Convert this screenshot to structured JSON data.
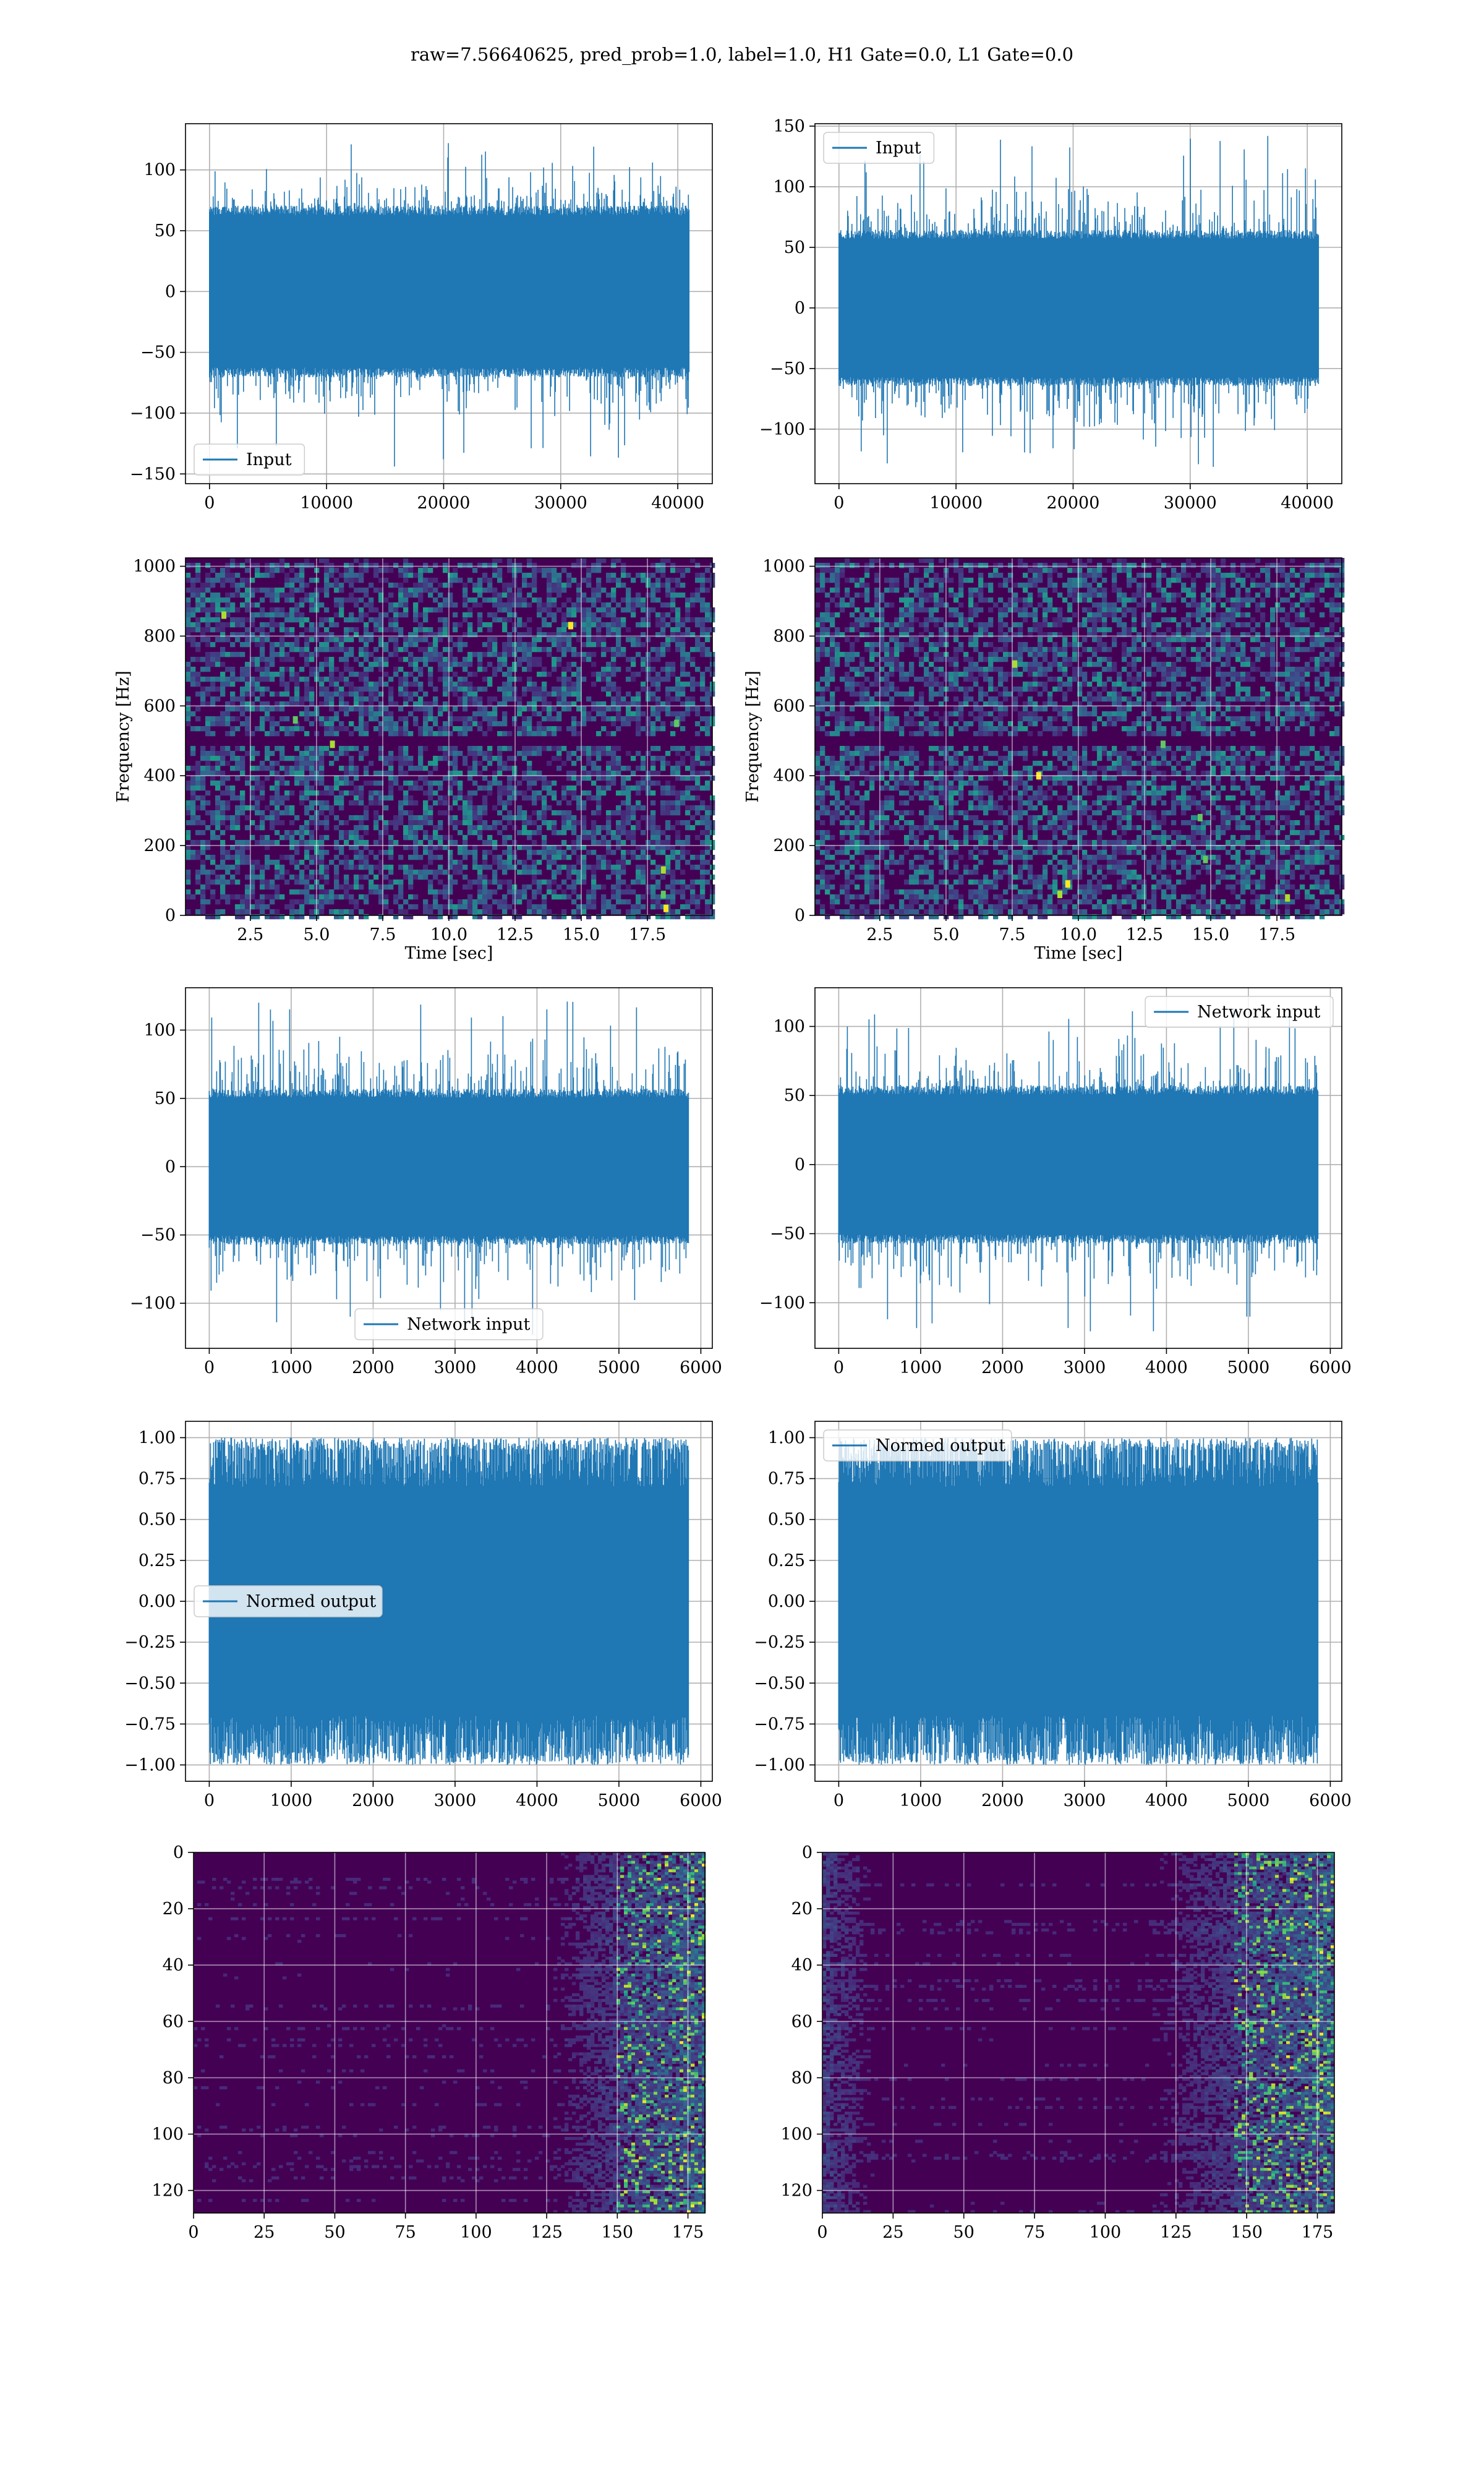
{
  "figure": {
    "title": "raw=7.56640625, pred_prob=1.0, label=1.0, H1 Gate=0.0, L1 Gate=0.0"
  },
  "colors": {
    "series": "#1f77b4",
    "grid": "#b0b0b0",
    "viridis_dark": "#440154",
    "viridis_mid": "#21918c",
    "viridis_bright": "#fde725"
  },
  "chart_data": [
    {
      "id": "h1-input",
      "type": "line",
      "title": "",
      "xlabel": "",
      "ylabel": "",
      "xlim": [
        -2050,
        42950
      ],
      "ylim": [
        -158,
        138
      ],
      "xticks": [
        0,
        10000,
        20000,
        30000,
        40000
      ],
      "yticks": [
        -150,
        -100,
        -50,
        0,
        50,
        100
      ],
      "grid": true,
      "legend": "lower left",
      "series": [
        {
          "name": "Input",
          "x_range": [
            0,
            40959
          ],
          "envelope": {
            "typical": [
              -68,
              68
            ],
            "peaks": [
              -146,
              124
            ]
          }
        }
      ]
    },
    {
      "id": "l1-input",
      "type": "line",
      "title": "",
      "xlabel": "",
      "ylabel": "",
      "xlim": [
        -2050,
        42950
      ],
      "ylim": [
        -145,
        152
      ],
      "xticks": [
        0,
        10000,
        20000,
        30000,
        40000
      ],
      "yticks": [
        -100,
        -50,
        0,
        50,
        100,
        150
      ],
      "grid": true,
      "legend": "upper left",
      "series": [
        {
          "name": "Input",
          "x_range": [
            0,
            40959
          ],
          "envelope": {
            "typical": [
              -62,
              62
            ],
            "peaks": [
              -132,
              142
            ]
          }
        }
      ]
    },
    {
      "id": "h1-spectrogram",
      "type": "heatmap",
      "title": "",
      "xlabel": "Time [sec]",
      "ylabel": "Frequency [Hz]",
      "xlim": [
        0.05,
        19.95
      ],
      "ylim": [
        0,
        1024
      ],
      "xticks": [
        2.5,
        5.0,
        7.5,
        10.0,
        12.5,
        15.0,
        17.5
      ],
      "yticks": [
        0,
        200,
        400,
        600,
        800,
        1000
      ],
      "grid": true,
      "colormap": "viridis",
      "dark_band_hz": [
        485,
        520
      ],
      "bright_spots": [
        {
          "t": 18.1,
          "f": 60
        },
        {
          "t": 18.1,
          "f": 130
        },
        {
          "t": 18.2,
          "f": 20
        },
        {
          "t": 18.6,
          "f": 550
        },
        {
          "t": 5.6,
          "f": 490
        },
        {
          "t": 14.6,
          "f": 830
        },
        {
          "t": 4.2,
          "f": 560
        },
        {
          "t": 1.5,
          "f": 860
        }
      ]
    },
    {
      "id": "l1-spectrogram",
      "type": "heatmap",
      "title": "",
      "xlabel": "Time [sec]",
      "ylabel": "Frequency [Hz]",
      "xlim": [
        0.05,
        19.95
      ],
      "ylim": [
        0,
        1024
      ],
      "xticks": [
        2.5,
        5.0,
        7.5,
        10.0,
        12.5,
        15.0,
        17.5
      ],
      "yticks": [
        0,
        200,
        400,
        600,
        800,
        1000
      ],
      "grid": true,
      "colormap": "viridis",
      "dark_band_hz": [
        485,
        520
      ],
      "bright_spots": [
        {
          "t": 13.2,
          "f": 490
        },
        {
          "t": 7.6,
          "f": 720
        },
        {
          "t": 9.6,
          "f": 90
        },
        {
          "t": 14.8,
          "f": 160
        },
        {
          "t": 9.3,
          "f": 60
        },
        {
          "t": 8.5,
          "f": 400
        },
        {
          "t": 14.6,
          "f": 280
        },
        {
          "t": 17.9,
          "f": 50
        }
      ]
    },
    {
      "id": "h1-network-input",
      "type": "line",
      "title": "",
      "xlabel": "",
      "ylabel": "",
      "xlim": [
        -290,
        6140
      ],
      "ylim": [
        -133,
        131
      ],
      "xticks": [
        0,
        1000,
        2000,
        3000,
        4000,
        5000,
        6000
      ],
      "yticks": [
        -100,
        -50,
        0,
        50,
        100
      ],
      "grid": true,
      "legend": "lower center",
      "series": [
        {
          "name": "Network input",
          "x_range": [
            0,
            5849
          ],
          "envelope": {
            "typical": [
              -55,
              55
            ],
            "peaks": [
              -124,
              121
            ]
          }
        }
      ]
    },
    {
      "id": "l1-network-input",
      "type": "line",
      "title": "",
      "xlabel": "",
      "ylabel": "",
      "xlim": [
        -290,
        6140
      ],
      "ylim": [
        -133,
        128
      ],
      "xticks": [
        0,
        1000,
        2000,
        3000,
        4000,
        5000,
        6000
      ],
      "yticks": [
        -100,
        -50,
        0,
        50,
        100
      ],
      "grid": true,
      "legend": "upper right",
      "series": [
        {
          "name": "Network input",
          "x_range": [
            0,
            5849
          ],
          "envelope": {
            "typical": [
              -55,
              55
            ],
            "peaks": [
              -123,
              116
            ]
          }
        }
      ]
    },
    {
      "id": "h1-normed-output",
      "type": "line",
      "title": "",
      "xlabel": "",
      "ylabel": "",
      "xlim": [
        -290,
        6140
      ],
      "ylim": [
        -1.1,
        1.1
      ],
      "xticks": [
        0,
        1000,
        2000,
        3000,
        4000,
        5000,
        6000
      ],
      "yticks": [
        -1.0,
        -0.75,
        -0.5,
        -0.25,
        0.0,
        0.25,
        0.5,
        0.75,
        1.0
      ],
      "grid": true,
      "legend": "center left",
      "series": [
        {
          "name": "Normed output",
          "x_range": [
            0,
            5849
          ],
          "envelope": {
            "typical": [
              -0.92,
              0.92
            ],
            "peaks": [
              -1.0,
              1.0
            ]
          }
        }
      ]
    },
    {
      "id": "l1-normed-output",
      "type": "line",
      "title": "",
      "xlabel": "",
      "ylabel": "",
      "xlim": [
        -290,
        6140
      ],
      "ylim": [
        -1.1,
        1.1
      ],
      "xticks": [
        0,
        1000,
        2000,
        3000,
        4000,
        5000,
        6000
      ],
      "yticks": [
        -1.0,
        -0.75,
        -0.5,
        -0.25,
        0.0,
        0.25,
        0.5,
        0.75,
        1.0
      ],
      "grid": true,
      "legend": "upper left",
      "series": [
        {
          "name": "Normed output",
          "x_range": [
            0,
            5849
          ],
          "envelope": {
            "typical": [
              -0.92,
              0.92
            ],
            "peaks": [
              -1.0,
              1.0
            ]
          }
        }
      ]
    },
    {
      "id": "h1-feature-map",
      "type": "heatmap",
      "title": "",
      "xlabel": "",
      "ylabel": "",
      "xlim": [
        0,
        181
      ],
      "ylim": [
        128,
        0
      ],
      "xticks": [
        0,
        25,
        50,
        75,
        100,
        125,
        150,
        175
      ],
      "yticks": [
        0,
        20,
        40,
        60,
        80,
        100,
        120
      ],
      "grid": true,
      "colormap": "viridis",
      "rows": 128,
      "cols": 181,
      "activity_onset_col": 125,
      "activity_peak_cols": [
        150,
        175
      ]
    },
    {
      "id": "l1-feature-map",
      "type": "heatmap",
      "title": "",
      "xlabel": "",
      "ylabel": "",
      "xlim": [
        0,
        181
      ],
      "ylim": [
        128,
        0
      ],
      "xticks": [
        0,
        25,
        50,
        75,
        100,
        125,
        150,
        175
      ],
      "yticks": [
        0,
        20,
        40,
        60,
        80,
        100,
        120
      ],
      "grid": true,
      "colormap": "viridis",
      "rows": 128,
      "cols": 181,
      "activity_onset_col": 115,
      "activity_peak_cols": [
        145,
        180
      ],
      "left_edge_activity_cols": [
        0,
        20
      ]
    }
  ]
}
